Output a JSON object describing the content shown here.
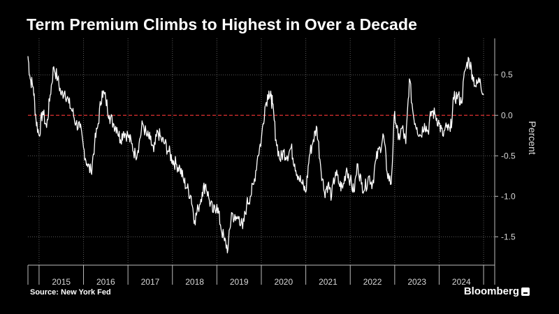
{
  "title": "Term Premium Climbs to Highest in Over a Decade",
  "source": "Source: New York Fed",
  "brand": "Bloomberg",
  "colors": {
    "line": "#ffffff",
    "zero_line": "#e03030",
    "grid": "#5a5a5a",
    "axis": "#bbbbbb"
  },
  "chart_data": {
    "type": "line",
    "title": "Term Premium Climbs to Highest in Over a Decade",
    "ylabel": "Percent",
    "xlabel": "",
    "x_range": [
      2014.75,
      2025.25
    ],
    "ylim": [
      -1.85,
      0.95
    ],
    "y_ticks": [
      0.5,
      0.0,
      -0.5,
      -1.0,
      -1.5
    ],
    "y_tick_labels": [
      "0.5",
      "0.0",
      "-0.5",
      "-1.0",
      "-1.5"
    ],
    "x_tick_labels": [
      "2015",
      "2016",
      "2017",
      "2018",
      "2019",
      "2020",
      "2021",
      "2022",
      "2023",
      "2024"
    ],
    "reference_line": {
      "y": 0.0,
      "style": "dashed",
      "color": "#e03030"
    },
    "grid": true,
    "legend": "none",
    "series": [
      {
        "x": [
          2014.75,
          2014.8,
          2014.87,
          2014.93,
          2015.0,
          2015.08,
          2015.17,
          2015.25,
          2015.33,
          2015.42,
          2015.5,
          2015.58,
          2015.67,
          2015.75,
          2015.83,
          2015.92,
          2016.0,
          2016.08,
          2016.17,
          2016.25,
          2016.33,
          2016.42,
          2016.5,
          2016.58,
          2016.67,
          2016.75,
          2016.83,
          2016.9,
          2017.0,
          2017.08,
          2017.17,
          2017.25,
          2017.33,
          2017.42,
          2017.5,
          2017.58,
          2017.67,
          2017.75,
          2017.83,
          2017.92,
          2018.0,
          2018.08,
          2018.17,
          2018.25,
          2018.33,
          2018.42,
          2018.5,
          2018.58,
          2018.67,
          2018.75,
          2018.83,
          2018.92,
          2019.0,
          2019.08,
          2019.17,
          2019.25,
          2019.33,
          2019.42,
          2019.5,
          2019.58,
          2019.67,
          2019.75,
          2019.83,
          2019.92,
          2020.0,
          2020.08,
          2020.17,
          2020.22,
          2020.25,
          2020.33,
          2020.42,
          2020.5,
          2020.58,
          2020.67,
          2020.75,
          2020.83,
          2020.92,
          2021.0,
          2021.08,
          2021.17,
          2021.25,
          2021.33,
          2021.42,
          2021.5,
          2021.58,
          2021.67,
          2021.75,
          2021.83,
          2021.92,
          2022.0,
          2022.08,
          2022.17,
          2022.25,
          2022.33,
          2022.42,
          2022.5,
          2022.58,
          2022.67,
          2022.75,
          2022.83,
          2022.92,
          2023.0,
          2023.08,
          2023.17,
          2023.25,
          2023.33,
          2023.42,
          2023.5,
          2023.58,
          2023.67,
          2023.75,
          2023.83,
          2023.92,
          2024.0,
          2024.08,
          2024.17,
          2024.25,
          2024.33,
          2024.42,
          2024.5,
          2024.58,
          2024.67,
          2024.75,
          2024.83,
          2024.92,
          2025.0
        ],
        "values": [
          0.73,
          0.45,
          0.35,
          -0.05,
          -0.25,
          0.05,
          -0.15,
          0.25,
          0.6,
          0.45,
          0.25,
          0.3,
          0.15,
          0.05,
          -0.1,
          -0.15,
          -0.4,
          -0.6,
          -0.7,
          -0.35,
          -0.1,
          0.3,
          0.2,
          0.0,
          -0.1,
          -0.15,
          -0.3,
          -0.2,
          -0.25,
          -0.35,
          -0.5,
          -0.35,
          -0.1,
          -0.25,
          -0.3,
          -0.45,
          -0.2,
          -0.3,
          -0.35,
          -0.45,
          -0.55,
          -0.6,
          -0.65,
          -0.8,
          -0.9,
          -1.0,
          -1.3,
          -1.15,
          -0.95,
          -0.85,
          -1.05,
          -1.2,
          -1.1,
          -1.35,
          -1.55,
          -1.65,
          -1.2,
          -1.3,
          -1.25,
          -1.4,
          -1.1,
          -1.0,
          -0.85,
          -0.5,
          -0.3,
          0.1,
          0.3,
          0.2,
          0.15,
          -0.3,
          -0.55,
          -0.45,
          -0.5,
          -0.4,
          -0.6,
          -0.75,
          -0.85,
          -0.95,
          -0.5,
          -0.3,
          -0.15,
          -0.6,
          -0.95,
          -0.85,
          -1.0,
          -0.7,
          -0.85,
          -0.9,
          -0.65,
          -0.8,
          -0.95,
          -0.6,
          -0.85,
          -0.9,
          -0.75,
          -0.85,
          -0.55,
          -0.4,
          -0.25,
          -0.7,
          -0.85,
          0.05,
          -0.3,
          -0.15,
          -0.35,
          0.45,
          0.0,
          -0.15,
          -0.25,
          -0.1,
          -0.2,
          0.05,
          0.0,
          -0.1,
          -0.25,
          -0.15,
          -0.2,
          0.2,
          0.25,
          0.15,
          0.55,
          0.7,
          0.5,
          0.35,
          0.45,
          0.25
        ]
      }
    ]
  }
}
